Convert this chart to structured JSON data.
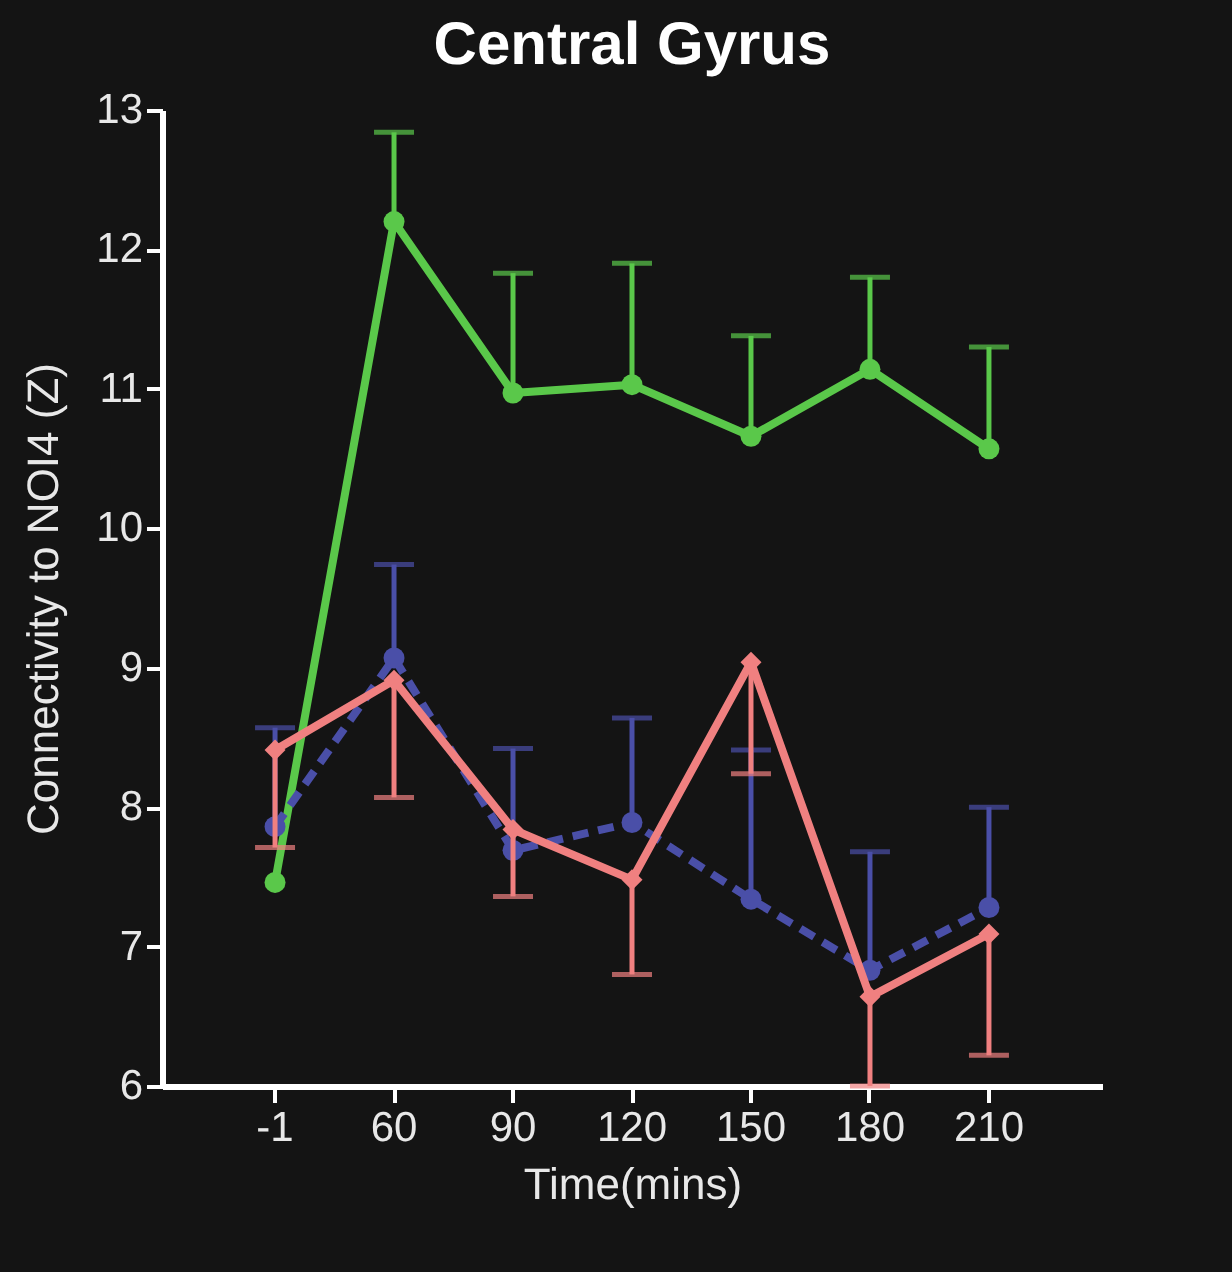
{
  "chart_data": {
    "type": "line",
    "title": "Central Gyrus",
    "xlabel": "Time(mins)",
    "ylabel": "Connectivity to NOI4 (Z)",
    "categories": [
      "-1",
      "60",
      "90",
      "120",
      "150",
      "180",
      "210"
    ],
    "ylim": [
      6,
      13
    ],
    "yticks": [
      6,
      7,
      8,
      9,
      10,
      11,
      12,
      13
    ],
    "grid": false,
    "series": [
      {
        "color": "#5ac84a",
        "marker": "circle",
        "line_style": "solid",
        "values": [
          7.46,
          12.2,
          10.97,
          11.03,
          10.66,
          11.14,
          10.57
        ],
        "errors": [
          null,
          [
            12.2,
            12.84
          ],
          [
            10.97,
            11.83
          ],
          [
            11.03,
            11.9
          ],
          [
            10.66,
            11.38
          ],
          [
            11.14,
            11.8
          ],
          [
            10.57,
            11.3
          ]
        ]
      },
      {
        "color": "#4a4fa8",
        "marker": "circle",
        "line_style": "dashed",
        "values": [
          7.86,
          9.07,
          7.69,
          7.89,
          7.34,
          6.83,
          7.28
        ],
        "errors": [
          [
            7.86,
            8.57
          ],
          [
            9.07,
            9.74
          ],
          [
            7.69,
            8.42
          ],
          [
            7.89,
            8.64
          ],
          [
            7.34,
            8.41
          ],
          [
            6.83,
            7.68
          ],
          [
            7.28,
            8.0
          ]
        ]
      },
      {
        "color": "#f08080",
        "marker": "diamond",
        "line_style": "solid",
        "values": [
          8.41,
          8.91,
          7.84,
          7.48,
          9.04,
          6.64,
          7.09
        ],
        "errors": [
          [
            7.71,
            8.41
          ],
          [
            8.07,
            8.91
          ],
          [
            7.36,
            7.84
          ],
          [
            6.8,
            7.48
          ],
          [
            8.24,
            9.04
          ],
          [
            6.0,
            6.64
          ],
          [
            6.22,
            7.09
          ]
        ]
      }
    ]
  }
}
